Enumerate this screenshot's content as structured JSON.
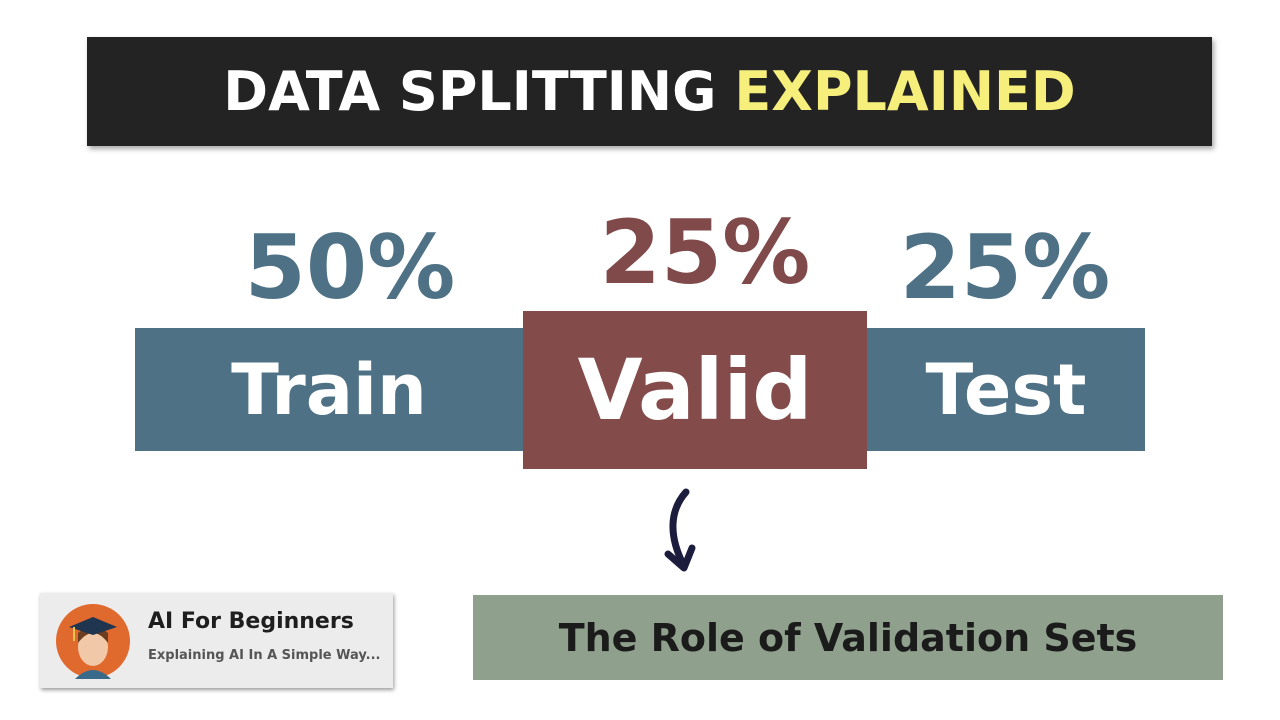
{
  "header": {
    "title_main": "DATA SPLITTING",
    "title_highlight": "EXPLAINED"
  },
  "segments": [
    {
      "percent": "50%",
      "label": "Train"
    },
    {
      "percent": "25%",
      "label": "Valid"
    },
    {
      "percent": "25%",
      "label": "Test"
    }
  ],
  "channel": {
    "name": "AI For Beginners",
    "tagline": "Explaining AI In A Simple Way..."
  },
  "caption": "The Role of Validation Sets"
}
